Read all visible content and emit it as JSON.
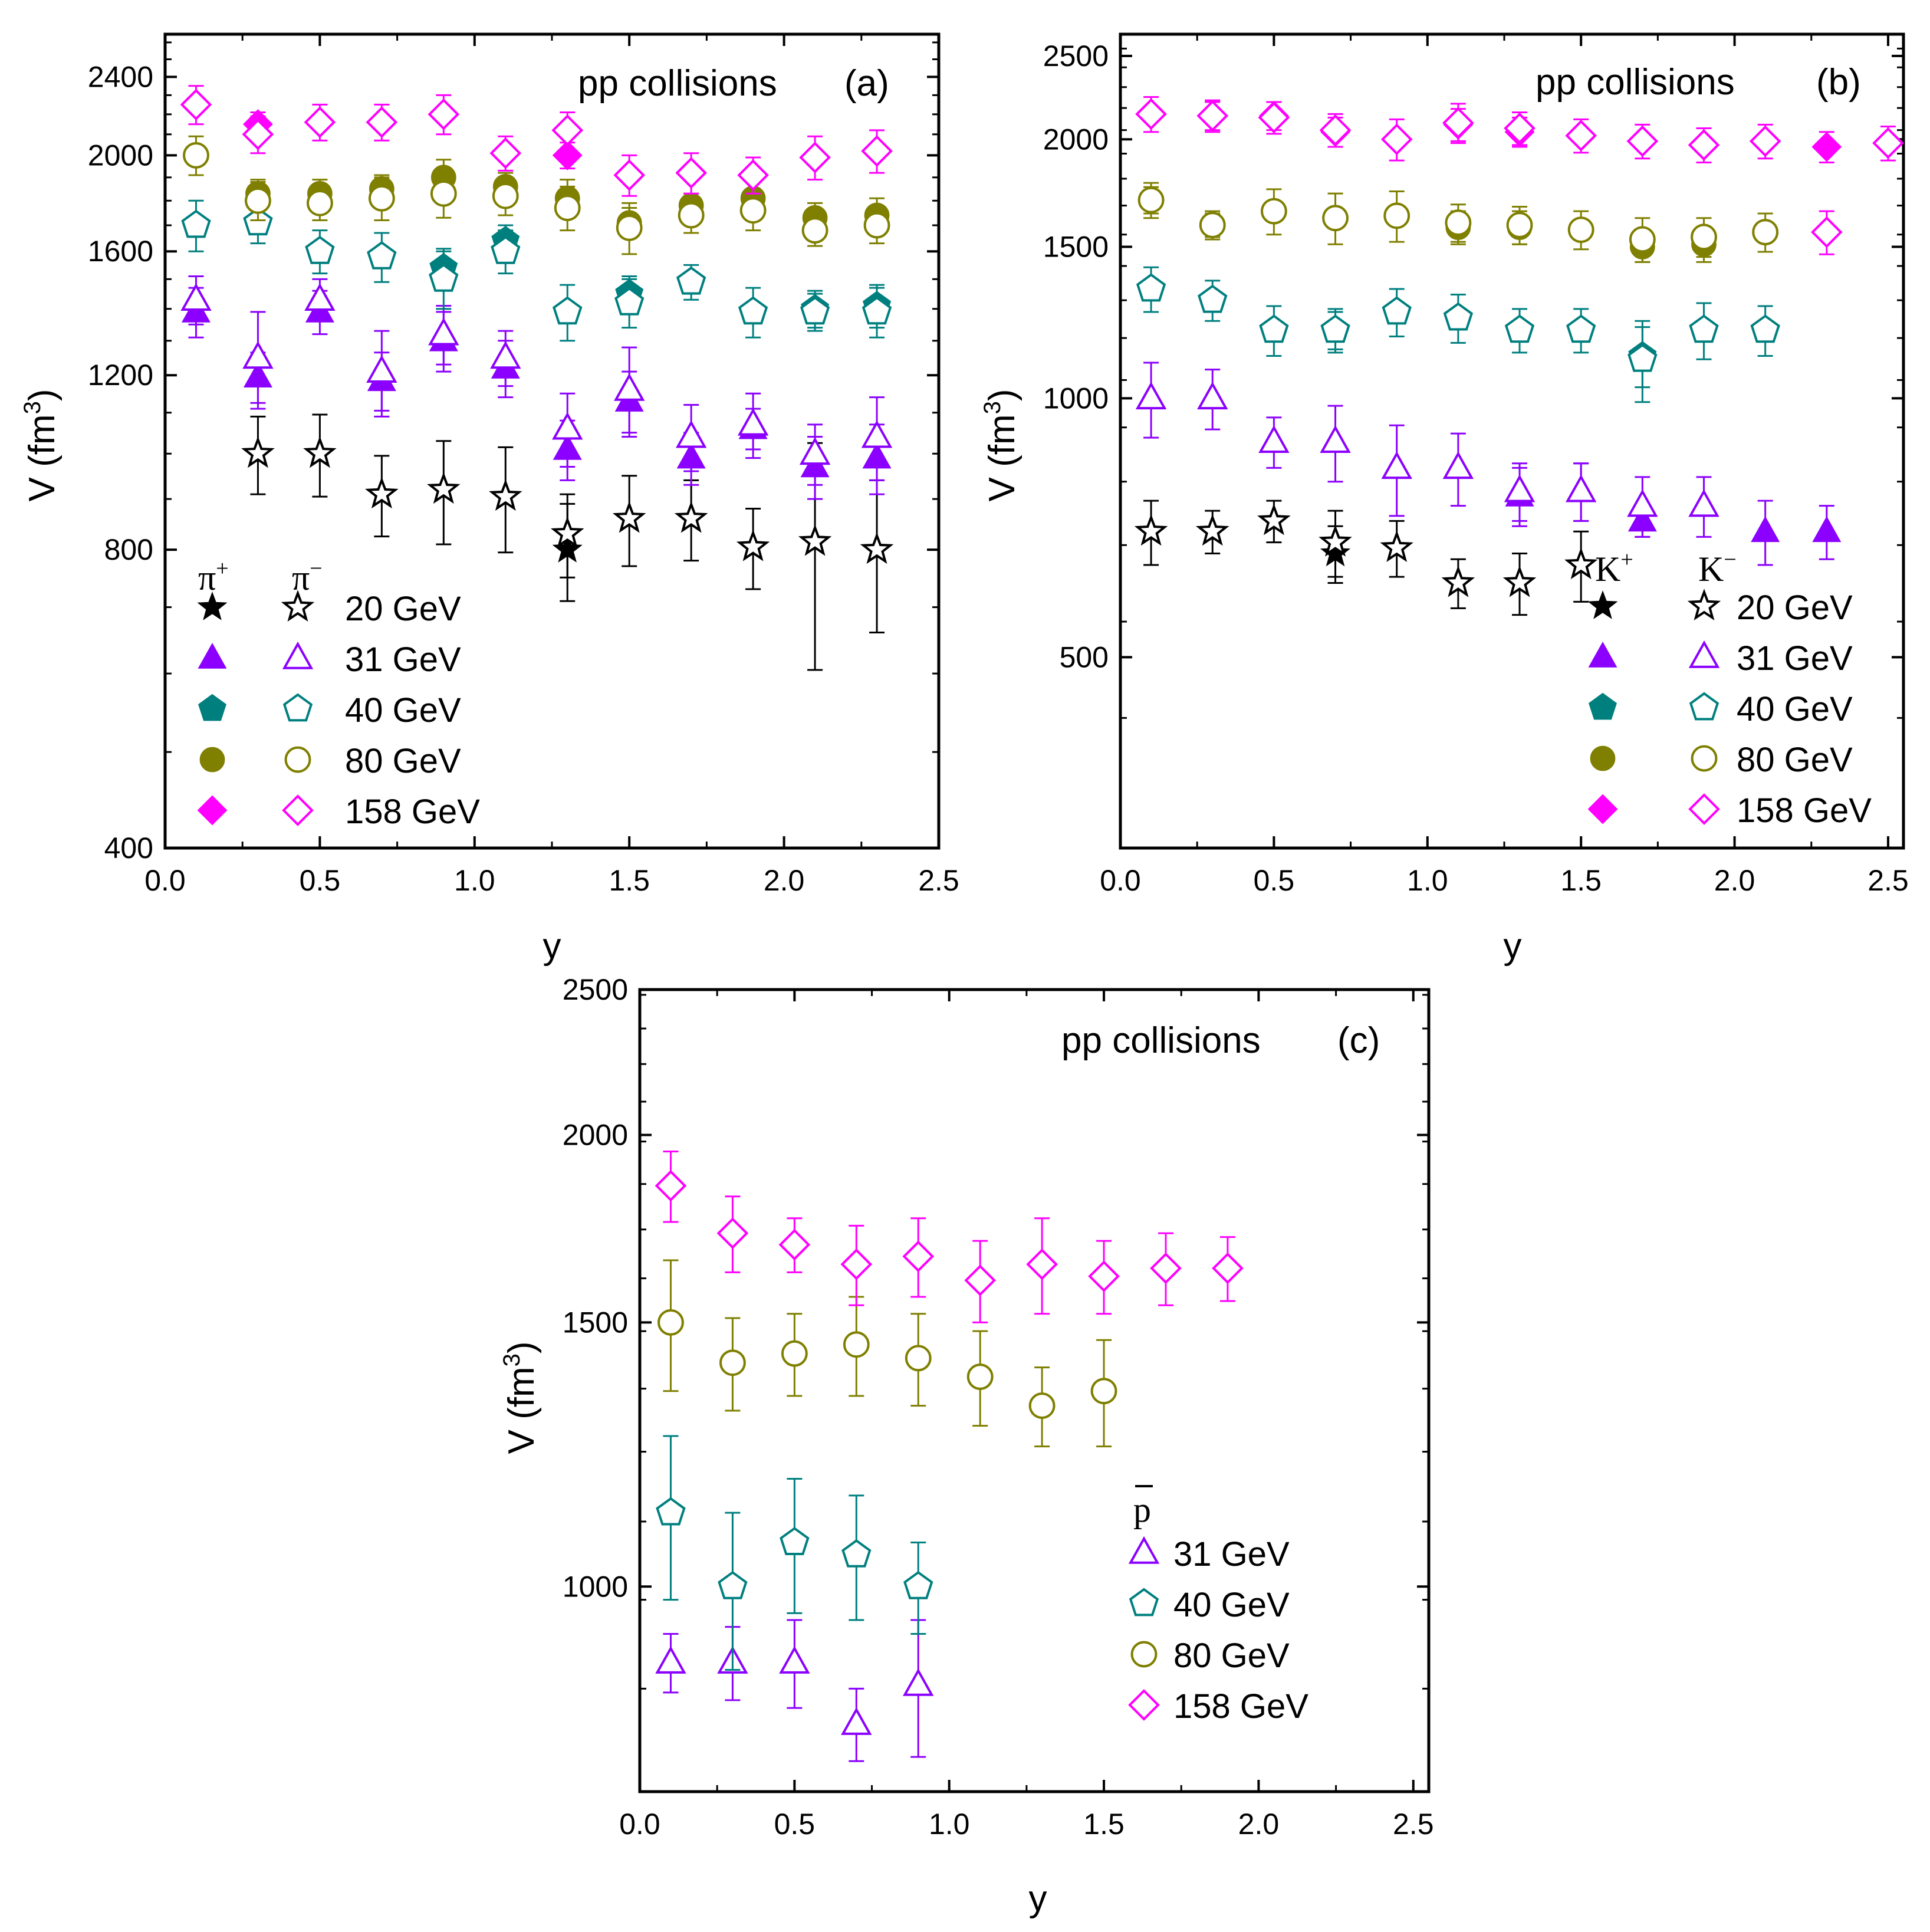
{
  "figure": {
    "description_panels": 3,
    "legend_colors": {
      "20 GeV": "#000000",
      "31 GeV": "#8B00FF",
      "40 GeV": "#007F7F",
      "80 GeV": "#7F7F00",
      "158 GeV": "#FF00FF"
    },
    "energy_markers": {
      "20 GeV": "star",
      "31 GeV": "triangle",
      "40 GeV": "pentagon",
      "80 GeV": "circle",
      "158 GeV": "diamond"
    }
  },
  "chart_data": [
    {
      "type": "scatter",
      "title": "pp collisions",
      "panel_label": "(a)",
      "xlabel": "y",
      "ylabel": "V (fm",
      "ylabel_sup": "3",
      "ylabel_end": ")",
      "yscale": "log",
      "xlim": [
        0,
        2.5
      ],
      "ylim": [
        400,
        2650
      ],
      "xticks": [
        "0.0",
        "0.5",
        "1.0",
        "1.5",
        "2.0",
        "2.5"
      ],
      "xtick_values": [
        0,
        0.5,
        1.0,
        1.5,
        2.0,
        2.5
      ],
      "yticks": [
        "400",
        "800",
        "1200",
        "1600",
        "2000",
        "2400"
      ],
      "ytick_values": [
        400,
        800,
        1200,
        1600,
        2000,
        2400
      ],
      "legend": {
        "col1_head": "π",
        "col1_sup": "+",
        "col2_head": "π",
        "col2_sup": "−",
        "entries": [
          "20 GeV",
          "31 GeV",
          "40 GeV",
          "80 GeV",
          "158 GeV"
        ]
      },
      "series": [
        {
          "name": "π+ 20 GeV",
          "energy": "20 GeV",
          "filled": true,
          "x": [
            1.3
          ],
          "y": [
            800
          ],
          "err": [
            90
          ]
        },
        {
          "name": "π- 20 GeV",
          "energy": "20 GeV",
          "filled": false,
          "x": [
            0.3,
            0.5,
            0.7,
            0.9,
            1.1,
            1.3,
            1.5,
            1.7,
            1.9,
            2.1,
            2.3
          ],
          "y": [
            1000,
            1000,
            910,
            920,
            905,
            830,
            860,
            860,
            805,
            815,
            800
          ],
          "err": [
            90,
            95,
            85,
            110,
            110,
            80,
            90,
            80,
            75,
            210,
            140
          ]
        },
        {
          "name": "π+ 31 GeV",
          "energy": "31 GeV",
          "filled": true,
          "x": [
            0.1,
            0.3,
            0.5,
            0.7,
            0.9,
            1.1,
            1.3,
            1.5,
            1.7,
            1.9,
            2.1,
            2.3
          ],
          "y": [
            1390,
            1195,
            1390,
            1185,
            1300,
            1220,
            1010,
            1130,
            990,
            1060,
            970,
            990
          ],
          "err": [
            80,
            70,
            70,
            80,
            90,
            80,
            70,
            80,
            60,
            50,
            70,
            80
          ]
        },
        {
          "name": "π- 31 GeV",
          "energy": "31 GeV",
          "filled": false,
          "x": [
            0.1,
            0.3,
            0.5,
            0.7,
            0.9,
            1.1,
            1.3,
            1.5,
            1.7,
            1.9,
            2.1,
            2.3
          ],
          "y": [
            1430,
            1250,
            1430,
            1210,
            1320,
            1250,
            1060,
            1160,
            1040,
            1070,
            1000,
            1040
          ],
          "err": [
            80,
            140,
            70,
            120,
            90,
            80,
            90,
            120,
            80,
            80,
            70,
            100
          ]
        },
        {
          "name": "π+ 40 GeV",
          "energy": "40 GeV",
          "filled": true,
          "x": [
            0.9,
            1.1,
            1.5,
            2.1,
            2.3
          ],
          "y": [
            1540,
            1640,
            1450,
            1400,
            1410
          ],
          "err": [
            70,
            60,
            60,
            60,
            70
          ]
        },
        {
          "name": "π- 40 GeV",
          "energy": "40 GeV",
          "filled": false,
          "x": [
            0.1,
            0.3,
            0.5,
            0.7,
            0.9,
            1.1,
            1.3,
            1.5,
            1.7,
            1.9,
            2.1,
            2.3
          ],
          "y": [
            1700,
            1710,
            1600,
            1580,
            1500,
            1600,
            1390,
            1420,
            1490,
            1390,
            1390,
            1390
          ],
          "err": [
            100,
            80,
            80,
            90,
            100,
            80,
            90,
            80,
            60,
            80,
            60,
            80
          ]
        },
        {
          "name": "π+ 80 GeV",
          "energy": "80 GeV",
          "filled": true,
          "x": [
            0.3,
            0.5,
            0.7,
            0.9,
            1.1,
            1.3,
            1.5,
            1.7,
            1.9,
            2.1,
            2.3
          ],
          "y": [
            1830,
            1830,
            1850,
            1900,
            1860,
            1810,
            1710,
            1780,
            1810,
            1730,
            1740
          ],
          "err": [
            60,
            60,
            60,
            80,
            60,
            80,
            60,
            50,
            70,
            60,
            70
          ]
        },
        {
          "name": "π- 80 GeV",
          "energy": "80 GeV",
          "filled": false,
          "x": [
            0.1,
            0.3,
            0.5,
            0.7,
            0.9,
            1.1,
            1.3,
            1.5,
            1.7,
            1.9,
            2.1,
            2.3
          ],
          "y": [
            2000,
            1800,
            1790,
            1810,
            1830,
            1820,
            1770,
            1690,
            1740,
            1760,
            1680,
            1700
          ],
          "err": [
            90,
            80,
            70,
            90,
            100,
            80,
            90,
            100,
            70,
            80,
            60,
            70
          ]
        },
        {
          "name": "π+ 158 GeV",
          "energy": "158 GeV",
          "filled": true,
          "x": [
            0.3,
            1.3
          ],
          "y": [
            2150,
            2000
          ],
          "err": [
            60,
            60
          ]
        },
        {
          "name": "π- 158 GeV",
          "energy": "158 GeV",
          "filled": false,
          "x": [
            0.1,
            0.3,
            0.5,
            0.7,
            0.9,
            1.1,
            1.3,
            1.5,
            1.7,
            1.9,
            2.1,
            2.3
          ],
          "y": [
            2250,
            2100,
            2160,
            2160,
            2200,
            2010,
            2120,
            1910,
            1920,
            1910,
            1990,
            2020
          ],
          "err": [
            100,
            90,
            90,
            90,
            100,
            80,
            90,
            90,
            90,
            80,
            100,
            100
          ]
        }
      ]
    },
    {
      "type": "scatter",
      "title": "pp collisions",
      "panel_label": "(b)",
      "xlabel": "y",
      "ylabel": "V (fm",
      "ylabel_sup": "3",
      "ylabel_end": ")",
      "yscale": "log",
      "xlim": [
        0,
        2.55
      ],
      "ylim": [
        300,
        2650
      ],
      "xticks": [
        "0.0",
        "0.5",
        "1.0",
        "1.5",
        "2.0",
        "2.5"
      ],
      "xtick_values": [
        0,
        0.5,
        1.0,
        1.5,
        2.0,
        2.5
      ],
      "yticks": [
        "500",
        "1000",
        "1500",
        "2000",
        "2500"
      ],
      "ytick_values": [
        500,
        1000,
        1500,
        2000,
        2500
      ],
      "legend": {
        "col1_head": "K",
        "col1_sup": "+",
        "col2_head": "K",
        "col2_sup": "−",
        "entries": [
          "20 GeV",
          "31 GeV",
          "40 GeV",
          "80 GeV",
          "158 GeV"
        ]
      },
      "series": [
        {
          "name": "K+ 20 GeV",
          "energy": "20 GeV",
          "filled": true,
          "x": [
            0.7
          ],
          "y": [
            660
          ],
          "err": [
            50
          ]
        },
        {
          "name": "K- 20 GeV",
          "energy": "20 GeV",
          "filled": false,
          "x": [
            0.1,
            0.3,
            0.5,
            0.7,
            0.9,
            1.1,
            1.3,
            1.5
          ],
          "y": [
            700,
            700,
            720,
            680,
            670,
            610,
            610,
            640
          ],
          "err": [
            60,
            40,
            40,
            60,
            50,
            40,
            50,
            60
          ]
        },
        {
          "name": "K+ 31 GeV",
          "energy": "31 GeV",
          "filled": true,
          "x": [
            1.3,
            1.5,
            1.7,
            2.1,
            2.3
          ],
          "y": [
            770,
            780,
            720,
            700,
            700
          ],
          "err": [
            60,
            60,
            30,
            60,
            50
          ]
        },
        {
          "name": "K- 31 GeV",
          "energy": "31 GeV",
          "filled": false,
          "x": [
            0.1,
            0.3,
            0.5,
            0.7,
            0.9,
            1.1,
            1.3,
            1.5,
            1.7,
            1.9
          ],
          "y": [
            1000,
            1000,
            890,
            890,
            830,
            830,
            780,
            780,
            750,
            750
          ],
          "err": [
            100,
            80,
            60,
            90,
            100,
            80,
            60,
            60,
            60,
            60
          ]
        },
        {
          "name": "K+ 40 GeV",
          "energy": "40 GeV",
          "filled": true,
          "x": [
            0.7,
            1.7
          ],
          "y": [
            1200,
            1120
          ],
          "err": [
            60,
            90
          ]
        },
        {
          "name": "K- 40 GeV",
          "energy": "40 GeV",
          "filled": false,
          "x": [
            0.1,
            0.3,
            0.5,
            0.7,
            0.9,
            1.1,
            1.3,
            1.5,
            1.7,
            1.9,
            2.1
          ],
          "y": [
            1340,
            1300,
            1200,
            1200,
            1260,
            1240,
            1200,
            1200,
            1110,
            1200,
            1200
          ],
          "err": [
            80,
            70,
            80,
            70,
            80,
            80,
            70,
            70,
            120,
            90,
            80
          ]
        },
        {
          "name": "K+ 80 GeV",
          "energy": "80 GeV",
          "filled": true,
          "x": [
            0.1,
            0.3,
            1.1,
            1.3,
            1.7,
            1.9
          ],
          "y": [
            1700,
            1590,
            1580,
            1580,
            1500,
            1510
          ],
          "err": [
            60,
            50,
            70,
            70,
            60,
            70
          ]
        },
        {
          "name": "K- 80 GeV",
          "energy": "80 GeV",
          "filled": false,
          "x": [
            0.1,
            0.3,
            0.5,
            0.7,
            0.9,
            1.1,
            1.3,
            1.5,
            1.7,
            1.9,
            2.1
          ],
          "y": [
            1700,
            1590,
            1650,
            1620,
            1630,
            1600,
            1590,
            1570,
            1530,
            1540,
            1560
          ],
          "err": [
            80,
            60,
            100,
            110,
            110,
            80,
            80,
            80,
            90,
            80,
            80
          ]
        },
        {
          "name": "K+ 158 GeV",
          "energy": "158 GeV",
          "filled": true,
          "x": [
            0.3,
            0.5,
            0.7,
            1.1,
            1.3,
            2.3
          ],
          "y": [
            2130,
            2130,
            2040,
            2080,
            2040,
            1960
          ],
          "err": [
            80,
            80,
            80,
            90,
            80,
            80
          ]
        },
        {
          "name": "K- 158 GeV",
          "energy": "158 GeV",
          "filled": false,
          "x": [
            0.1,
            0.3,
            0.5,
            0.7,
            0.9,
            1.1,
            1.3,
            1.5,
            1.7,
            1.9,
            2.1,
            2.5
          ],
          "y": [
            2140,
            2130,
            2120,
            2050,
            2000,
            2090,
            2060,
            2020,
            1990,
            1970,
            1990,
            1980
          ],
          "err": [
            100,
            90,
            90,
            90,
            110,
            110,
            90,
            90,
            90,
            90,
            90,
            90
          ]
        },
        {
          "name": "K- 158 GeV (low)",
          "energy": "158 GeV",
          "filled": false,
          "x": [
            2.3
          ],
          "y": [
            1560
          ],
          "err": [
            90
          ]
        }
      ]
    },
    {
      "type": "scatter",
      "title": "pp collisions",
      "panel_label": "(c)",
      "xlabel": "y",
      "ylabel": "V (fm",
      "ylabel_sup": "3",
      "ylabel_end": ")",
      "yscale": "log",
      "xlim": [
        0,
        2.55
      ],
      "ylim": [
        730,
        2500
      ],
      "xticks": [
        "0.0",
        "0.5",
        "1.0",
        "1.5",
        "2.0",
        "2.5"
      ],
      "xtick_values": [
        0,
        0.5,
        1.0,
        1.5,
        2.0,
        2.5
      ],
      "yticks": [
        "1000",
        "1500",
        "2000",
        "2500"
      ],
      "ytick_values": [
        1000,
        1500,
        2000,
        2500
      ],
      "legend": {
        "col1_head": "p",
        "col1_sup": "",
        "col2_head": "",
        "col2_sup": "",
        "entries": [
          "31 GeV",
          "40 GeV",
          "80 GeV",
          "158 GeV"
        ]
      },
      "series": [
        {
          "name": "pbar 31 GeV",
          "energy": "31 GeV",
          "filled": false,
          "x": [
            0.1,
            0.3,
            0.5,
            0.7,
            0.9
          ],
          "y": [
            890,
            890,
            890,
            810,
            860
          ],
          "err": [
            40,
            50,
            60,
            45,
            90
          ]
        },
        {
          "name": "pbar 40 GeV",
          "energy": "40 GeV",
          "filled": false,
          "x": [
            0.1,
            0.3,
            0.5,
            0.7,
            0.9
          ],
          "y": [
            1120,
            1000,
            1070,
            1050,
            1000
          ],
          "err": [
            140,
            120,
            110,
            100,
            70
          ]
        },
        {
          "name": "pbar 80 GeV",
          "energy": "80 GeV",
          "filled": false,
          "x": [
            0.1,
            0.3,
            0.5,
            0.7,
            0.9,
            1.1,
            1.3,
            1.5
          ],
          "y": [
            1500,
            1410,
            1430,
            1450,
            1420,
            1380,
            1320,
            1350
          ],
          "err": [
            150,
            100,
            90,
            110,
            100,
            100,
            80,
            110
          ]
        },
        {
          "name": "pbar 158 GeV",
          "energy": "158 GeV",
          "filled": false,
          "x": [
            0.1,
            0.3,
            0.5,
            0.7,
            0.9,
            1.1,
            1.3,
            1.5,
            1.7,
            1.9
          ],
          "y": [
            1850,
            1720,
            1690,
            1640,
            1660,
            1600,
            1640,
            1610,
            1630,
            1630
          ],
          "err": [
            100,
            100,
            70,
            100,
            100,
            100,
            120,
            90,
            90,
            80
          ]
        }
      ]
    }
  ]
}
